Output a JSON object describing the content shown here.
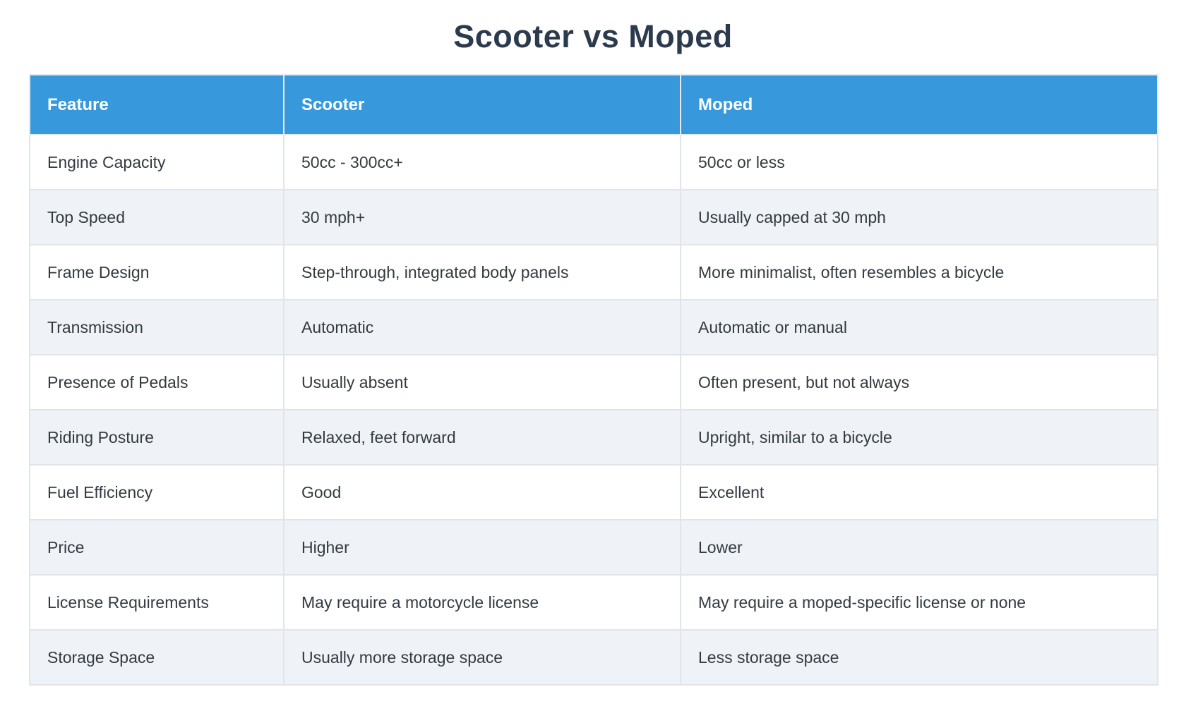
{
  "page": {
    "title": "Scooter vs Moped"
  },
  "colors": {
    "header_bg": "#3798db",
    "header_text": "#ffffff",
    "title_text": "#2c3a4e",
    "row_bg": "#ffffff",
    "row_alt_bg": "#eff3f8",
    "border": "#e1e4e8",
    "cell_text": "#333a40"
  },
  "table": {
    "columns": [
      "Feature",
      "Scooter",
      "Moped"
    ],
    "rows": [
      {
        "feature": "Engine Capacity",
        "scooter": "50cc - 300cc+",
        "moped": "50cc or less"
      },
      {
        "feature": "Top Speed",
        "scooter": "30 mph+",
        "moped": "Usually capped at 30 mph"
      },
      {
        "feature": "Frame Design",
        "scooter": "Step-through, integrated body panels",
        "moped": "More minimalist, often resembles a bicycle"
      },
      {
        "feature": "Transmission",
        "scooter": "Automatic",
        "moped": "Automatic or manual"
      },
      {
        "feature": "Presence of Pedals",
        "scooter": "Usually absent",
        "moped": "Often present, but not always"
      },
      {
        "feature": "Riding Posture",
        "scooter": "Relaxed, feet forward",
        "moped": "Upright, similar to a bicycle"
      },
      {
        "feature": "Fuel Efficiency",
        "scooter": "Good",
        "moped": "Excellent"
      },
      {
        "feature": "Price",
        "scooter": "Higher",
        "moped": "Lower"
      },
      {
        "feature": "License Requirements",
        "scooter": "May require a motorcycle license",
        "moped": "May require a moped-specific license or none"
      },
      {
        "feature": "Storage Space",
        "scooter": "Usually more storage space",
        "moped": "Less storage space"
      }
    ]
  }
}
